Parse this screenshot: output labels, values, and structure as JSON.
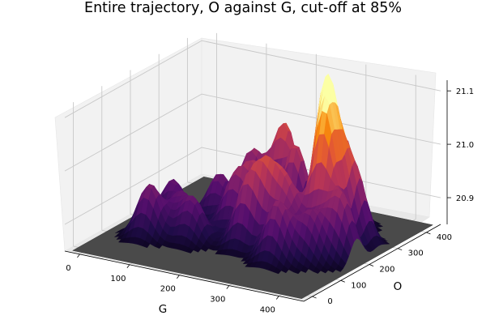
{
  "chart_data": {
    "type": "surface3d",
    "title": "Entire trajectory, O against G, cut-off at 85%",
    "xlabel": "G",
    "ylabel": "O",
    "zlabel": "",
    "xlim": [
      -30,
      450
    ],
    "ylim": [
      -30,
      450
    ],
    "zlim": [
      20.85,
      21.12
    ],
    "xticks": [
      "0",
      "100",
      "200",
      "300",
      "400"
    ],
    "yticks": [
      "0",
      "100",
      "200",
      "300",
      "400"
    ],
    "zticks": [
      "20.9",
      "21.0",
      "21.1"
    ],
    "xtick_values": [
      0,
      100,
      200,
      300,
      400
    ],
    "ytick_values": [
      0,
      100,
      200,
      300,
      400
    ],
    "ztick_values": [
      20.9,
      21.0,
      21.1
    ],
    "baseline_z": 20.85,
    "colormap": "inferno",
    "floor_color": "#4a4a4a",
    "grid": true,
    "peaks": [
      {
        "G": 60,
        "O": 110,
        "z": 20.95
      },
      {
        "G": 55,
        "O": 200,
        "z": 20.93
      },
      {
        "G": 95,
        "O": 160,
        "z": 20.92
      },
      {
        "G": 120,
        "O": 250,
        "z": 20.94
      },
      {
        "G": 150,
        "O": 310,
        "z": 20.97
      },
      {
        "G": 175,
        "O": 205,
        "z": 20.95
      },
      {
        "G": 135,
        "O": 130,
        "z": 20.93
      },
      {
        "G": 200,
        "O": 340,
        "z": 21.02
      },
      {
        "G": 210,
        "O": 230,
        "z": 20.97
      },
      {
        "G": 245,
        "O": 300,
        "z": 21.0
      },
      {
        "G": 230,
        "O": 150,
        "z": 20.96
      },
      {
        "G": 260,
        "O": 175,
        "z": 20.98
      },
      {
        "G": 320,
        "O": 340,
        "z": 21.02
      },
      {
        "G": 330,
        "O": 260,
        "z": 21.12
      },
      {
        "G": 350,
        "O": 220,
        "z": 21.07
      },
      {
        "G": 300,
        "O": 180,
        "z": 20.96
      },
      {
        "G": 380,
        "O": 270,
        "z": 20.99
      },
      {
        "G": 310,
        "O": 120,
        "z": 20.96
      },
      {
        "G": 360,
        "O": 150,
        "z": 20.94
      },
      {
        "G": 400,
        "O": 190,
        "z": 20.97
      }
    ]
  }
}
